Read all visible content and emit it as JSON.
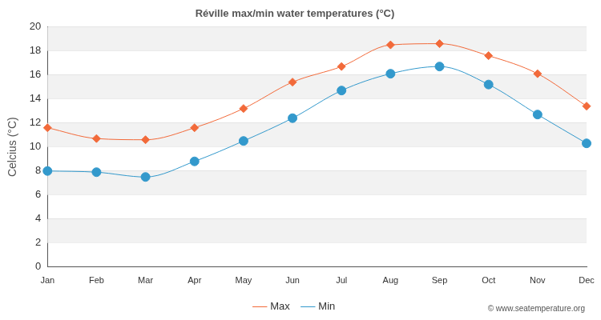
{
  "chart_data": {
    "type": "line",
    "title": "Réville max/min water temperatures (°C)",
    "y_label": "Celcius (°C)",
    "categories": [
      "Jan",
      "Feb",
      "Mar",
      "Apr",
      "May",
      "Jun",
      "Jul",
      "Aug",
      "Sep",
      "Oct",
      "Nov",
      "Dec"
    ],
    "series": [
      {
        "name": "Max",
        "color": "#f26a3a",
        "marker": "diamond",
        "line_style": "solid",
        "values": [
          11.6,
          10.7,
          10.6,
          11.6,
          13.2,
          15.4,
          16.7,
          18.5,
          18.6,
          17.6,
          16.1,
          13.4
        ]
      },
      {
        "name": "Min",
        "color": "#3399cc",
        "marker": "circle",
        "line_style": "solid",
        "values": [
          8.0,
          7.9,
          7.5,
          8.8,
          10.5,
          12.4,
          14.7,
          16.1,
          16.7,
          15.2,
          12.7,
          10.3
        ]
      }
    ],
    "ylim": [
      0,
      20
    ],
    "yticks": [
      0,
      2,
      4,
      6,
      8,
      10,
      12,
      14,
      16,
      18,
      20
    ],
    "grid": true,
    "legend": "bottom",
    "annotations": [
      "© www.seatemperature.org"
    ]
  }
}
